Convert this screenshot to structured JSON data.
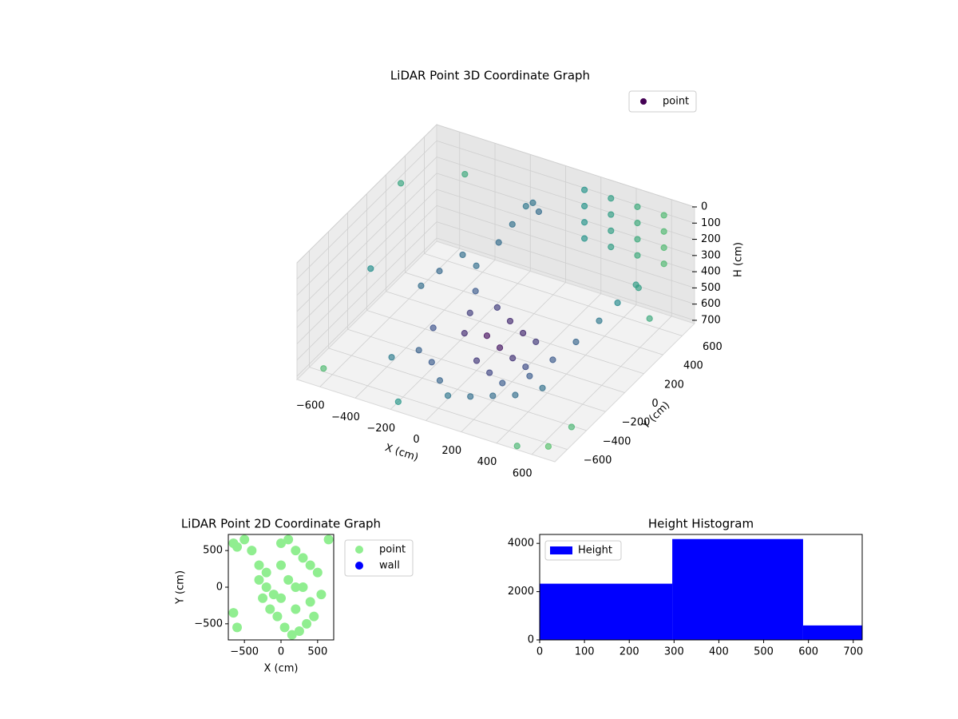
{
  "chart_data": [
    {
      "type": "scatter3d",
      "title": "LiDAR Point 3D Coordinate Graph",
      "x_label": "X (cm)",
      "y_label": "Y (cm)",
      "z_label": "H (cm)",
      "xlim": [
        -730,
        730
      ],
      "ylim": [
        -730,
        730
      ],
      "zlim": [
        720,
        0
      ],
      "xticks": [
        {
          "value": -600,
          "label": "−600"
        },
        {
          "value": -400,
          "label": "−400"
        },
        {
          "value": -200,
          "label": "−200"
        },
        0,
        200,
        400,
        600
      ],
      "yticks": [
        {
          "value": -600,
          "label": "−600"
        },
        {
          "value": -400,
          "label": "−400"
        },
        {
          "value": -200,
          "label": "−200"
        },
        0,
        200,
        400,
        600
      ],
      "zticks": [
        0,
        100,
        200,
        300,
        400,
        500,
        600,
        700
      ],
      "colormap": "viridis",
      "grid": true,
      "legend": "upper right",
      "series": [
        {
          "name": "point",
          "color": "#440154",
          "x": [
            150,
            150,
            150,
            150,
            300,
            300,
            300,
            300,
            450,
            450,
            450,
            450,
            600,
            600,
            600,
            600,
            -100,
            0,
            100,
            200,
            -50,
            50,
            150,
            250,
            -150,
            0,
            100,
            200,
            300,
            350,
            400,
            450,
            500,
            550,
            -200,
            -250,
            -300,
            -350,
            -200,
            -150,
            -100,
            -50,
            0,
            -400,
            -450,
            -300,
            -200,
            -100,
            0,
            100,
            200,
            300,
            400,
            -300,
            -400,
            -700,
            -600,
            -650,
            650,
            700,
            -500,
            500,
            700,
            -200,
            600
          ],
          "y": [
            650,
            650,
            650,
            650,
            650,
            650,
            650,
            650,
            650,
            650,
            650,
            650,
            650,
            650,
            650,
            650,
            200,
            150,
            100,
            50,
            0,
            -50,
            -100,
            -150,
            -50,
            -200,
            -250,
            -300,
            -200,
            -50,
            100,
            250,
            350,
            450,
            100,
            250,
            350,
            300,
            400,
            450,
            500,
            480,
            450,
            150,
            50,
            -100,
            -300,
            -400,
            -500,
            -450,
            -400,
            -350,
            -250,
            -250,
            -350,
            300,
            -200,
            -600,
            -650,
            200,
            600,
            -700,
            -500,
            -650,
            500
          ],
          "z": [
            50,
            150,
            250,
            350,
            50,
            150,
            250,
            350,
            50,
            150,
            250,
            350,
            50,
            150,
            250,
            350,
            600,
            620,
            630,
            620,
            640,
            650,
            650,
            640,
            630,
            660,
            670,
            670,
            650,
            620,
            580,
            520,
            450,
            380,
            610,
            580,
            500,
            420,
            350,
            250,
            150,
            100,
            120,
            450,
            500,
            620,
            680,
            700,
            700,
            700,
            690,
            680,
            660,
            670,
            690,
            100,
            300,
            700,
            700,
            200,
            150,
            720,
            650,
            720,
            600
          ]
        }
      ]
    },
    {
      "type": "scatter",
      "title": "LiDAR Point 2D Coordinate Graph",
      "x_label": "X (cm)",
      "y_label": "Y (cm)",
      "xlim": [
        -720,
        720
      ],
      "ylim": [
        -720,
        720
      ],
      "xticks": [
        {
          "value": -500,
          "label": "−500"
        },
        0,
        500
      ],
      "yticks": [
        {
          "value": -500,
          "label": "−500"
        },
        0,
        500
      ],
      "legend": "outside right",
      "series": [
        {
          "name": "point",
          "color": "#90ee90",
          "x": [
            -650,
            -600,
            -500,
            -400,
            -300,
            -200,
            -100,
            0,
            100,
            200,
            300,
            400,
            500,
            -250,
            -150,
            -50,
            50,
            150,
            250,
            350,
            450,
            -300,
            -200,
            0,
            200,
            400,
            -650,
            -600,
            550,
            650,
            0,
            100,
            200,
            300
          ],
          "y": [
            600,
            550,
            650,
            500,
            300,
            0,
            -100,
            600,
            650,
            500,
            400,
            300,
            200,
            -150,
            -300,
            -400,
            -550,
            -650,
            -600,
            -500,
            -400,
            100,
            200,
            300,
            0,
            -200,
            -350,
            -550,
            -100,
            650,
            -150,
            100,
            -300,
            0
          ]
        },
        {
          "name": "wall",
          "color": "#0000ff",
          "x": [],
          "y": []
        }
      ]
    },
    {
      "type": "histogram",
      "title": "Height Histogram",
      "bins": [
        0,
        296,
        588,
        720
      ],
      "values": [
        2330,
        4180,
        600
      ],
      "xlim": [
        0,
        720
      ],
      "ylim": [
        0,
        4370
      ],
      "xticks": [
        0,
        100,
        200,
        300,
        400,
        500,
        600,
        700
      ],
      "yticks": [
        0,
        2000,
        4000
      ],
      "legend": "upper left",
      "series_name": "Height",
      "color": "#0000ff"
    }
  ]
}
